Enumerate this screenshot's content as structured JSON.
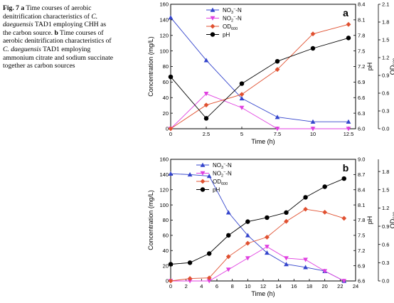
{
  "caption": {
    "fig_label": "Fig. 7",
    "part_a_letter": "a",
    "part_a_text1": "Time courses of aerobic denitrification characteristics of",
    "species": "C. daeguensis",
    "part_a_text2": "TAD1 employing CHH as the carbon source.",
    "part_b_letter": "b",
    "part_b_text1": "Time courses of aerobic denitrification characteristics of",
    "part_b_text2": "TAD1 employing ammonium citrate and sodium succinate together as carbon sources"
  },
  "chart_data": [
    {
      "type": "line",
      "panel_label": "a",
      "xlabel": "Time (h)",
      "ylabel": "Concentration (mg/L)",
      "y2label": "pH",
      "y3label": "OD600",
      "x_ticks": [
        0,
        2.5,
        5,
        7.5,
        10,
        12.5
      ],
      "xlim": [
        0,
        13
      ],
      "ylim": [
        0,
        160
      ],
      "y_ticks": [
        0,
        20,
        40,
        60,
        80,
        100,
        120,
        140,
        160
      ],
      "y2lim": [
        6.0,
        8.4
      ],
      "y2_ticks": [
        "6.0",
        "6.3",
        "6.6",
        "6.9",
        "7.2",
        "7.5",
        "7.8",
        "8.1",
        "8.4"
      ],
      "y3lim": [
        0,
        2.1
      ],
      "y3_ticks": [
        "0.0",
        "0.3",
        "0.6",
        "0.9",
        "1.2",
        "1.5",
        "1.8",
        "2.1"
      ],
      "legend_position": "top-center",
      "series": [
        {
          "name": "NO3−-N",
          "axis": "left",
          "color": "#3344cc",
          "marker": "triangle-up",
          "x": [
            0,
            2.5,
            5,
            7.5,
            10,
            12.5
          ],
          "y": [
            143,
            88,
            39,
            15,
            9,
            9
          ]
        },
        {
          "name": "NO2−-N",
          "axis": "left",
          "color": "#e040e0",
          "marker": "triangle-down",
          "x": [
            0,
            2.5,
            5,
            7.5,
            10,
            12.5
          ],
          "y": [
            0,
            45,
            27,
            0,
            0,
            0
          ]
        },
        {
          "name": "OD600",
          "axis": "right-outer",
          "color": "#e05030",
          "marker": "diamond",
          "x": [
            0,
            2.5,
            5,
            7.5,
            10,
            12.5
          ],
          "y": [
            0.0,
            0.4,
            0.58,
            1.0,
            1.6,
            1.76
          ]
        },
        {
          "name": "pH",
          "axis": "right",
          "color": "#000000",
          "marker": "circle",
          "x": [
            0,
            2.5,
            5,
            7.5,
            10,
            12.5
          ],
          "y": [
            7.0,
            6.2,
            6.87,
            7.3,
            7.55,
            7.75
          ]
        }
      ]
    },
    {
      "type": "line",
      "panel_label": "b",
      "xlabel": "Time (h)",
      "ylabel": "Concentration (mg/L)",
      "y2label": "pH",
      "y3label": "OD600",
      "x_ticks": [
        0,
        2,
        4,
        6,
        8,
        10,
        12,
        14,
        16,
        18,
        20,
        22,
        24
      ],
      "xlim": [
        0,
        24
      ],
      "ylim": [
        0,
        160
      ],
      "y_ticks": [
        0,
        20,
        40,
        60,
        80,
        100,
        120,
        140,
        160
      ],
      "y2lim": [
        6.6,
        9.0
      ],
      "y2_ticks": [
        "6.6",
        "6.9",
        "7.2",
        "7.5",
        "7.8",
        "8.1",
        "8.4",
        "8.7",
        "9.0"
      ],
      "y3lim": [
        0,
        2.0
      ],
      "y3_ticks": [
        "0.0",
        "0.3",
        "0.6",
        "0.9",
        "1.2",
        "1.5",
        "1.8"
      ],
      "legend_position": "top-left",
      "series": [
        {
          "name": "NO3−-N",
          "axis": "left",
          "color": "#3344cc",
          "marker": "triangle-up",
          "x": [
            0,
            2.5,
            5,
            7.5,
            10,
            12.5,
            15,
            17.5,
            20,
            22.5
          ],
          "y": [
            141,
            140,
            138,
            90,
            60,
            37,
            22,
            18,
            13,
            0
          ]
        },
        {
          "name": "NO2−-N",
          "axis": "left",
          "color": "#e040e0",
          "marker": "triangle-down",
          "x": [
            0,
            2.5,
            5,
            7.5,
            10,
            12.5,
            15,
            17.5,
            20,
            22.5
          ],
          "y": [
            0,
            0,
            0,
            15,
            30,
            45,
            30,
            28,
            13,
            0
          ]
        },
        {
          "name": "OD600",
          "axis": "right-outer",
          "color": "#e05030",
          "marker": "diamond",
          "x": [
            0,
            2.5,
            5,
            7.5,
            10,
            12.5,
            15,
            17.5,
            20,
            22.5
          ],
          "y": [
            0.0,
            0.04,
            0.05,
            0.4,
            0.62,
            0.72,
            0.98,
            1.18,
            1.13,
            1.03
          ]
        },
        {
          "name": "pH",
          "axis": "right",
          "color": "#000000",
          "marker": "circle",
          "x": [
            0,
            2.5,
            5,
            7.5,
            10,
            12.5,
            15,
            17.5,
            20,
            22.5
          ],
          "y": [
            6.93,
            6.96,
            7.14,
            7.5,
            7.77,
            7.85,
            7.95,
            8.25,
            8.46,
            8.62
          ]
        }
      ]
    }
  ]
}
